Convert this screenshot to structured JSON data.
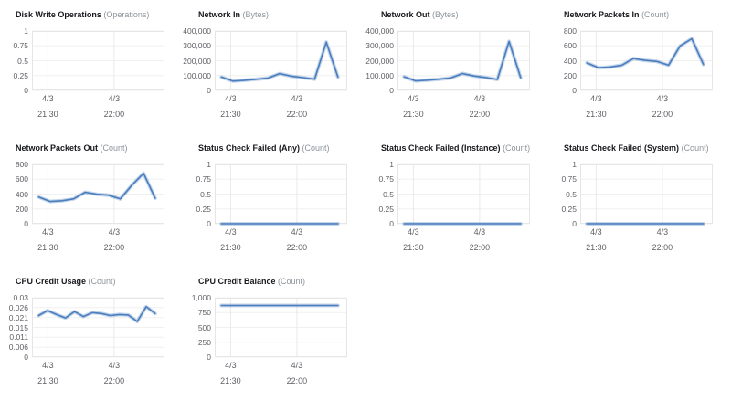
{
  "page": {
    "background": "#ffffff"
  },
  "colors": {
    "line": "#497dbd",
    "line_halo": "rgba(73,125,189,0.32)",
    "grid": "#f0f0f0",
    "grid_vertical": "#e9e9e9",
    "plot_border": "#e6e6e6",
    "title_text": "#17181c",
    "unit_text": "#8d949b",
    "tick_text": "#5f6066"
  },
  "x_axis": {
    "ticks": [
      {
        "date": "4/3",
        "time": "21:30",
        "frac": 0.12
      },
      {
        "date": "4/3",
        "time": "22:00",
        "frac": 0.62
      }
    ]
  },
  "chart_data": [
    {
      "type": "line",
      "title": "Disk Write Operations",
      "unit": "(Operations)",
      "y_ticks": [
        "1",
        "0.75",
        "0.5",
        "0.25",
        "0"
      ],
      "ylim": [
        0,
        1
      ],
      "values": []
    },
    {
      "type": "line",
      "title": "Network In",
      "unit": "(Bytes)",
      "y_ticks": [
        "400,000",
        "300,000",
        "200,000",
        "100,000",
        "0"
      ],
      "ylim": [
        0,
        400000
      ],
      "values": [
        90000,
        63000,
        68000,
        75000,
        83000,
        113000,
        96000,
        86000,
        76000,
        325000,
        90000
      ]
    },
    {
      "type": "line",
      "title": "Network Out",
      "unit": "(Bytes)",
      "y_ticks": [
        "400,000",
        "300,000",
        "200,000",
        "100,000",
        "0"
      ],
      "ylim": [
        0,
        400000
      ],
      "values": [
        92000,
        64000,
        69000,
        76000,
        84000,
        114000,
        97000,
        87000,
        74000,
        330000,
        86000
      ]
    },
    {
      "type": "line",
      "title": "Network Packets In",
      "unit": "(Count)",
      "y_ticks": [
        "800",
        "600",
        "400",
        "200",
        "0"
      ],
      "ylim": [
        0,
        800
      ],
      "values": [
        370,
        305,
        315,
        340,
        430,
        405,
        390,
        340,
        600,
        697,
        350
      ]
    },
    {
      "type": "line",
      "title": "Network Packets Out",
      "unit": "(Count)",
      "y_ticks": [
        "800",
        "600",
        "400",
        "200",
        "0"
      ],
      "ylim": [
        0,
        800
      ],
      "values": [
        360,
        300,
        310,
        335,
        425,
        398,
        385,
        335,
        520,
        680,
        345
      ]
    },
    {
      "type": "line",
      "title": "Status Check Failed (Any)",
      "unit": "(Count)",
      "y_ticks": [
        "1",
        "0.75",
        "0.5",
        "0.25",
        "0"
      ],
      "ylim": [
        0,
        1
      ],
      "values": [
        0,
        0,
        0,
        0,
        0,
        0,
        0,
        0,
        0,
        0,
        0
      ]
    },
    {
      "type": "line",
      "title": "Status Check Failed (Instance)",
      "unit": "(Count)",
      "y_ticks": [
        "1",
        "0.75",
        "0.5",
        "0.25",
        "0"
      ],
      "ylim": [
        0,
        1
      ],
      "values": [
        0,
        0,
        0,
        0,
        0,
        0,
        0,
        0,
        0,
        0,
        0
      ]
    },
    {
      "type": "line",
      "title": "Status Check Failed (System)",
      "unit": "(Count)",
      "y_ticks": [
        "1",
        "0.75",
        "0.5",
        "0.25",
        "0"
      ],
      "ylim": [
        0,
        1
      ],
      "values": [
        0,
        0,
        0,
        0,
        0,
        0,
        0,
        0,
        0,
        0,
        0
      ]
    },
    {
      "type": "line",
      "title": "CPU Credit Usage",
      "unit": "(Count)",
      "y_ticks": [
        "0.03",
        "0.026",
        "0.021",
        "0.015",
        "0.011",
        "0.006",
        "0"
      ],
      "ylim": [
        0,
        0.03
      ],
      "values": [
        0.021,
        0.0235,
        0.0215,
        0.0198,
        0.023,
        0.0205,
        0.0225,
        0.022,
        0.021,
        0.0215,
        0.0213,
        0.018,
        0.0255,
        0.022
      ]
    },
    {
      "type": "line",
      "title": "CPU Credit Balance",
      "unit": "(Count)",
      "y_ticks": [
        "1,000",
        "750",
        "500",
        "250",
        "0"
      ],
      "ylim": [
        0,
        1000
      ],
      "values": [
        870,
        870,
        870,
        870,
        870,
        870,
        870,
        870,
        870,
        870,
        870
      ]
    }
  ]
}
